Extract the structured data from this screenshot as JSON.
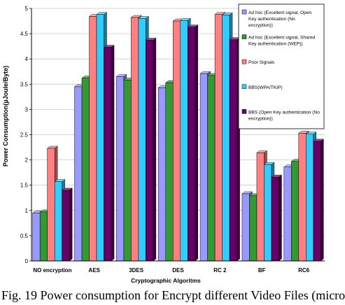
{
  "caption": "Fig. 19  Power consumption for Encrypt different Video Files (micro",
  "chart_data": {
    "type": "bar",
    "title": "",
    "xlabel": "Cryptographic Algoritms",
    "ylabel": "Power Consumption(µJoule/Byte)",
    "categories": [
      "NO encryption",
      "AES",
      "3DES",
      "DES",
      "RC 2",
      "BF",
      "RC6"
    ],
    "ylim": [
      0,
      5
    ],
    "yticks": [
      0,
      0.5,
      1,
      1.5,
      2,
      2.5,
      3,
      3.5,
      4,
      4.5,
      5
    ],
    "ytick_labels": [
      "0",
      "0.5",
      "1",
      "1.5",
      "2",
      "2.5",
      "3",
      "3.5",
      "4",
      "4.5",
      "5"
    ],
    "grid": true,
    "legend_position": "top-right",
    "series": [
      {
        "name": "Ad hoc (Excellent signal, Open Key authentication (No encryption))",
        "color": "#9999ff",
        "values": [
          0.95,
          3.45,
          3.65,
          3.43,
          3.71,
          1.33,
          1.86
        ]
      },
      {
        "name": "Ad hoc (Excellent signal, Shared Key authentication (WEP))",
        "color": "#339933",
        "values": [
          0.97,
          3.62,
          3.58,
          3.53,
          3.67,
          1.29,
          1.97
        ]
      },
      {
        "name": "Poor Signals",
        "color": "#ff8080",
        "values": [
          2.23,
          4.84,
          4.82,
          4.75,
          4.88,
          2.14,
          2.53
        ]
      },
      {
        "name": "BBS(WPA/TKIP)",
        "color": "#33ccff",
        "values": [
          1.57,
          4.88,
          4.8,
          4.76,
          4.87,
          1.91,
          2.51
        ]
      },
      {
        "name": "BBS (Open Key authentication (No encryption))",
        "color": "#660066",
        "values": [
          1.4,
          4.23,
          4.37,
          4.63,
          4.38,
          1.66,
          2.37
        ]
      }
    ]
  }
}
